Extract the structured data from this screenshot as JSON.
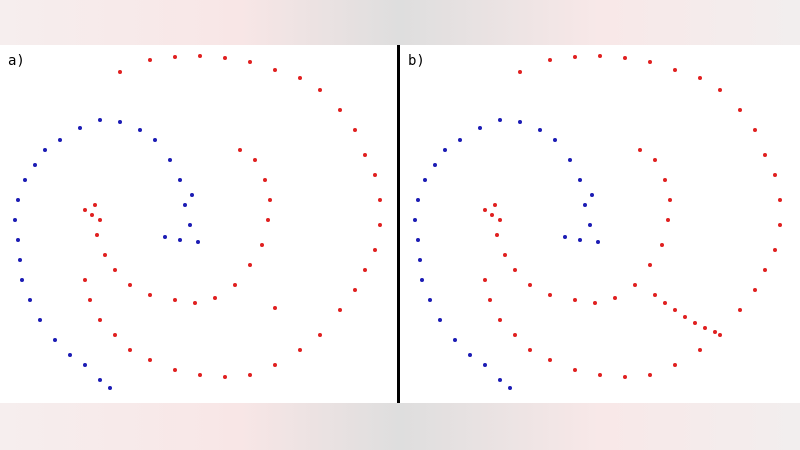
{
  "chart_data": [
    {
      "type": "scatter",
      "title": "a)",
      "xlim": [
        0,
        400
      ],
      "ylim": [
        0,
        358
      ],
      "series": [
        {
          "color": "#1c1cb4",
          "x": [
            165,
            180,
            198,
            190,
            185,
            192,
            180,
            170,
            155,
            140,
            120,
            100,
            80,
            60,
            45,
            35,
            25,
            18,
            15,
            18,
            20,
            22,
            30,
            40,
            55,
            70,
            85,
            100,
            110
          ],
          "y": [
            166,
            163,
            161,
            178,
            198,
            208,
            223,
            243,
            263,
            273,
            281,
            283,
            275,
            263,
            253,
            238,
            223,
            203,
            183,
            163,
            143,
            123,
            103,
            83,
            63,
            48,
            38,
            23,
            15
          ]
        },
        {
          "color": "#e02020",
          "x": [
            240,
            255,
            265,
            270,
            268,
            262,
            250,
            235,
            215,
            195,
            175,
            150,
            130,
            115,
            105,
            97,
            92,
            95,
            85,
            100,
            85,
            90,
            100,
            115,
            130,
            150,
            175,
            200,
            225,
            250,
            275,
            300,
            320,
            340,
            355,
            365,
            375,
            380,
            380,
            375,
            365,
            355,
            340,
            320,
            300,
            275,
            250,
            225,
            200,
            175,
            150,
            120,
            275
          ],
          "y": [
            253,
            243,
            223,
            203,
            183,
            158,
            138,
            118,
            105,
            100,
            103,
            108,
            118,
            133,
            148,
            168,
            188,
            198,
            193,
            183,
            123,
            103,
            83,
            68,
            53,
            43,
            33,
            28,
            26,
            28,
            38,
            53,
            68,
            93,
            113,
            133,
            153,
            178,
            203,
            228,
            248,
            273,
            293,
            313,
            325,
            333,
            341,
            345,
            347,
            346,
            343,
            331,
            95
          ]
        }
      ]
    },
    {
      "type": "scatter",
      "title": "b)",
      "xlim": [
        0,
        400
      ],
      "ylim": [
        0,
        358
      ],
      "series": [
        {
          "color": "#1c1cb4",
          "x": [
            165,
            180,
            198,
            190,
            185,
            192,
            180,
            170,
            155,
            140,
            120,
            100,
            80,
            60,
            45,
            35,
            25,
            18,
            15,
            18,
            20,
            22,
            30,
            40,
            55,
            70,
            85,
            100,
            110
          ],
          "y": [
            166,
            163,
            161,
            178,
            198,
            208,
            223,
            243,
            263,
            273,
            281,
            283,
            275,
            263,
            253,
            238,
            223,
            203,
            183,
            163,
            143,
            123,
            103,
            83,
            63,
            48,
            38,
            23,
            15
          ]
        },
        {
          "color": "#e02020",
          "x": [
            240,
            255,
            265,
            270,
            268,
            262,
            250,
            235,
            215,
            195,
            175,
            150,
            130,
            115,
            105,
            97,
            92,
            95,
            85,
            100,
            85,
            90,
            100,
            115,
            130,
            150,
            175,
            200,
            225,
            250,
            275,
            300,
            320,
            340,
            355,
            365,
            375,
            380,
            380,
            375,
            365,
            355,
            340,
            320,
            300,
            275,
            250,
            225,
            200,
            175,
            150,
            120,
            255,
            265,
            275,
            285,
            295,
            305,
            315
          ],
          "y": [
            253,
            243,
            223,
            203,
            183,
            158,
            138,
            118,
            105,
            100,
            103,
            108,
            118,
            133,
            148,
            168,
            188,
            198,
            193,
            183,
            123,
            103,
            83,
            68,
            53,
            43,
            33,
            28,
            26,
            28,
            38,
            53,
            68,
            93,
            113,
            133,
            153,
            178,
            203,
            228,
            248,
            273,
            293,
            313,
            325,
            333,
            341,
            345,
            347,
            346,
            343,
            331,
            108,
            100,
            93,
            86,
            80,
            75,
            71
          ]
        }
      ]
    }
  ]
}
